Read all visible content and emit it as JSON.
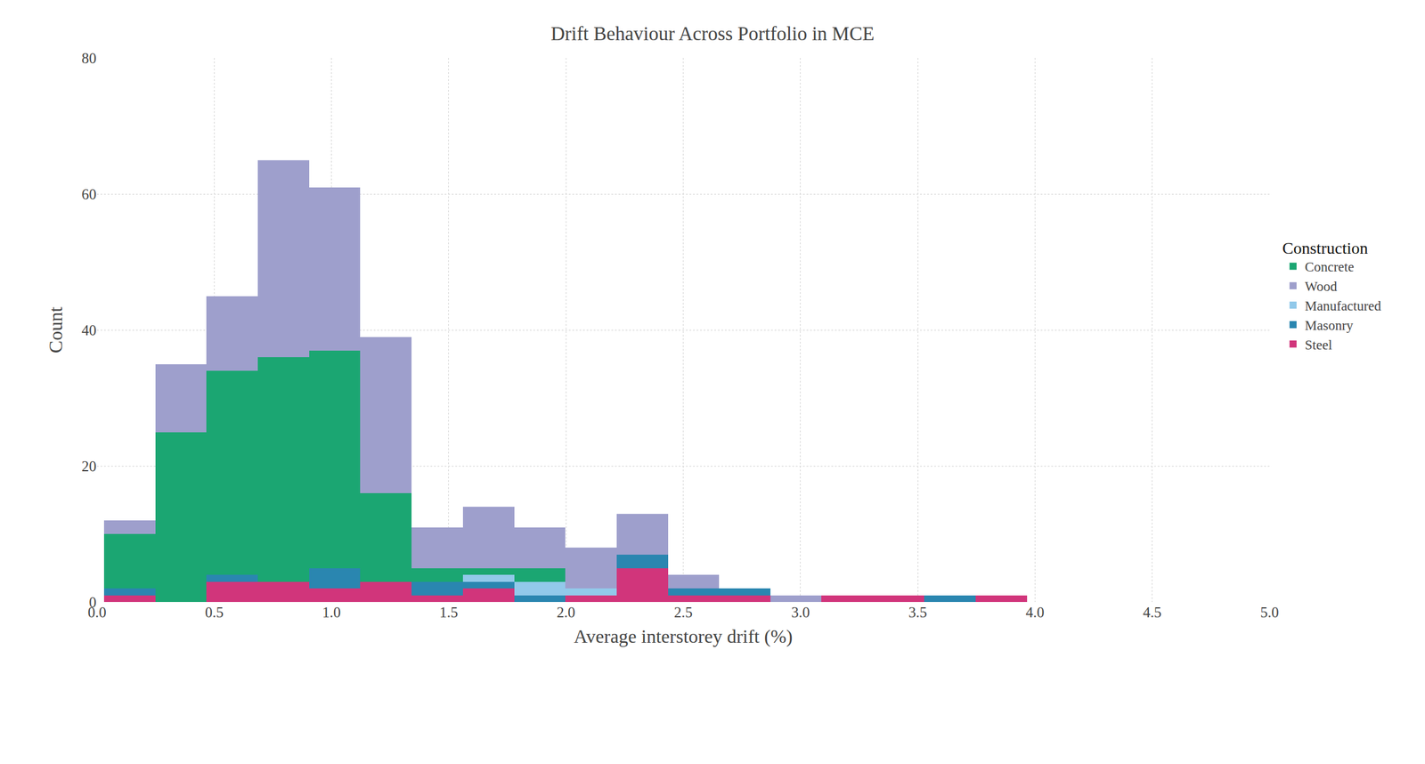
{
  "chart_data": {
    "type": "histogram",
    "title": "Drift Behaviour Across Portfolio in MCE",
    "x_label": "Average interstorey drift (%)",
    "y_label": "Count",
    "legend_title": "Construction",
    "stacked": true,
    "grid": true,
    "legend": "right",
    "bins": [
      0.03,
      0.249,
      0.467,
      0.686,
      0.904,
      1.123,
      1.342,
      1.56,
      1.779,
      1.997,
      2.216,
      2.435,
      2.653,
      2.872,
      3.09,
      3.309,
      3.528,
      3.746,
      3.965
    ],
    "series": [
      {
        "name": "Concrete",
        "color": "#1ba672",
        "values": [
          8,
          25,
          30,
          33,
          32,
          13,
          2,
          1,
          2,
          0,
          0,
          0,
          0,
          0,
          0,
          0,
          0,
          0
        ]
      },
      {
        "name": "Wood",
        "color": "#9e9fcc",
        "values": [
          2,
          10,
          11,
          29,
          24,
          23,
          6,
          9,
          6,
          6,
          6,
          2,
          0,
          1,
          0,
          0,
          0,
          0
        ]
      },
      {
        "name": "Manufactured",
        "color": "#92c9ea",
        "values": [
          0,
          0,
          0,
          0,
          0,
          0,
          0,
          1,
          2,
          1,
          0,
          0,
          0,
          0,
          0,
          0,
          0,
          0
        ]
      },
      {
        "name": "Masonry",
        "color": "#2a86b0",
        "values": [
          1,
          0,
          1,
          0,
          3,
          0,
          2,
          1,
          1,
          0,
          2,
          1,
          1,
          0,
          0,
          0,
          1,
          0
        ]
      },
      {
        "name": "Steel",
        "color": "#d1357b",
        "values": [
          1,
          0,
          3,
          3,
          2,
          3,
          1,
          2,
          0,
          1,
          5,
          1,
          1,
          0,
          1,
          1,
          0,
          1
        ]
      }
    ],
    "xlim": [
      0,
      5
    ],
    "xticks": [
      {
        "value": 0,
        "label": "0.0"
      },
      0.5,
      {
        "value": 1,
        "label": "1.0"
      },
      1.5,
      {
        "value": 2,
        "label": "2.0"
      },
      2.5,
      {
        "value": 3,
        "label": "3.0"
      },
      3.5,
      {
        "value": 4,
        "label": "4.0"
      },
      4.5,
      {
        "value": 5,
        "label": "5.0"
      }
    ],
    "ylim": [
      0,
      80
    ],
    "yticks": [
      0,
      20,
      40,
      60,
      80
    ]
  }
}
